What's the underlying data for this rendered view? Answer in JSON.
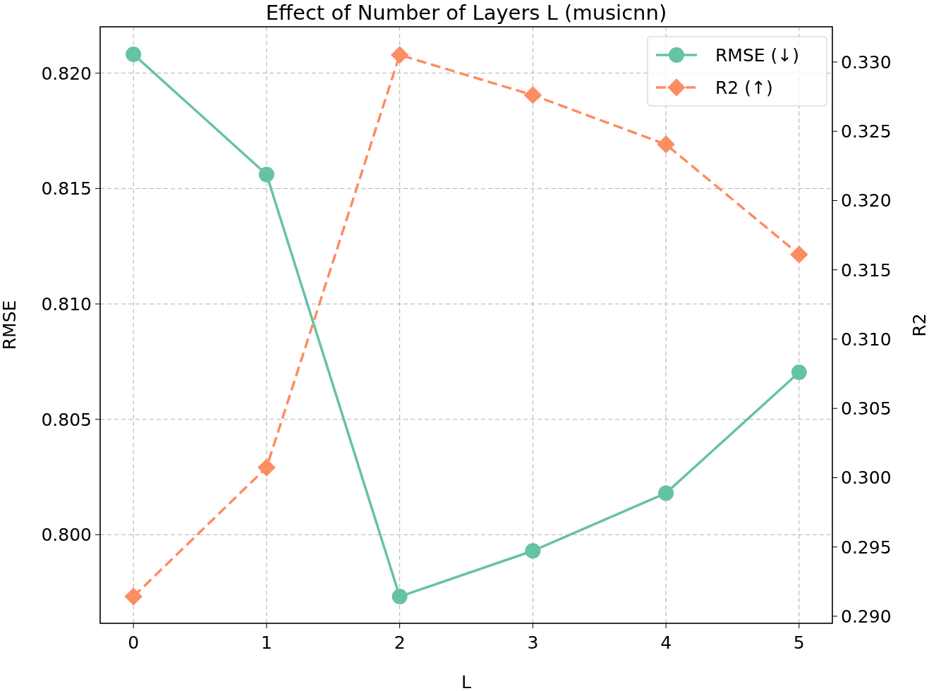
{
  "chart_data": {
    "type": "line",
    "title": "Effect of Number of Layers L (musicnn)",
    "xlabel": "L",
    "ylabel": "RMSE",
    "y2label": "R2",
    "x": [
      0,
      1,
      2,
      3,
      4,
      5
    ],
    "xlim": [
      -0.25,
      5.25
    ],
    "xticks": [
      0,
      1,
      2,
      3,
      4,
      5
    ],
    "ylim": [
      0.79616,
      0.82201
    ],
    "yticks": [
      {
        "value": 0.8,
        "label": "0.800"
      },
      {
        "value": 0.805,
        "label": "0.805"
      },
      {
        "value": 0.81,
        "label": "0.810"
      },
      {
        "value": 0.815,
        "label": "0.815"
      },
      {
        "value": 0.82,
        "label": "0.820"
      }
    ],
    "y2lim": [
      0.28949,
      0.33254
    ],
    "y2ticks": [
      {
        "value": 0.29,
        "label": "0.290"
      },
      {
        "value": 0.295,
        "label": "0.295"
      },
      {
        "value": 0.3,
        "label": "0.300"
      },
      {
        "value": 0.305,
        "label": "0.305"
      },
      {
        "value": 0.31,
        "label": "0.310"
      },
      {
        "value": 0.315,
        "label": "0.315"
      },
      {
        "value": 0.32,
        "label": "0.320"
      },
      {
        "value": 0.325,
        "label": "0.325"
      },
      {
        "value": 0.33,
        "label": "0.330"
      }
    ],
    "grid": true,
    "legend": "top right",
    "series": [
      {
        "name": "RMSE (↓)",
        "color": "#66c2a5",
        "values": [
          0.82082,
          0.81561,
          0.79732,
          0.7993,
          0.8018,
          0.80704
        ],
        "marker": "circle",
        "line_style": "solid"
      },
      {
        "name": "R2 (↑)",
        "color": "#fc8d62",
        "values": [
          0.29142,
          0.30074,
          0.33051,
          0.32761,
          0.32405,
          0.31611
        ],
        "axis": "y2",
        "marker": "diamond",
        "line_style": "dashed"
      }
    ]
  }
}
